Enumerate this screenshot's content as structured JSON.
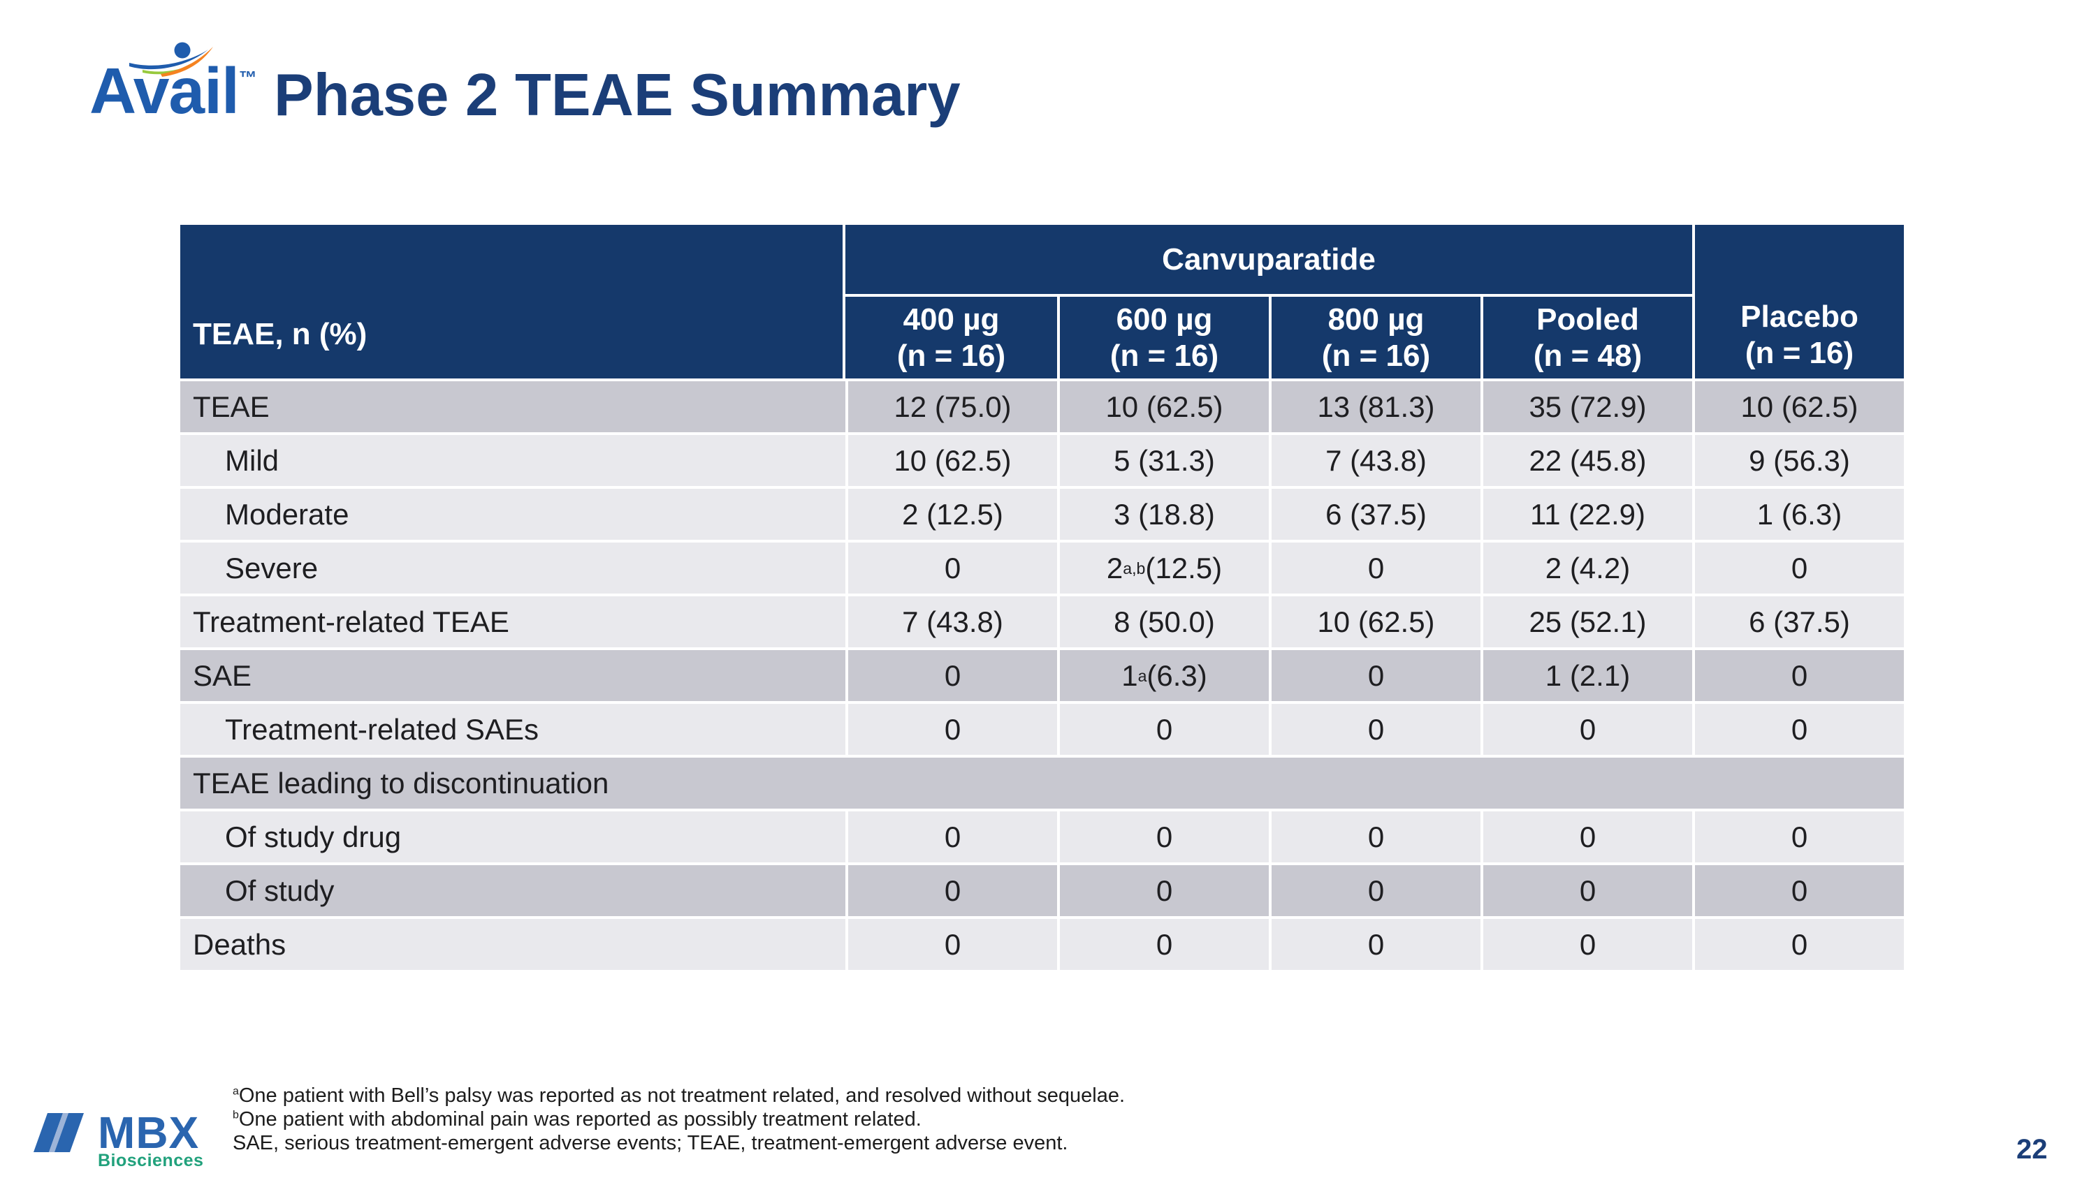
{
  "slide": {
    "brand": "Avail",
    "brand_tm": "™",
    "title": "Phase 2 TEAE Summary",
    "page_number": "22"
  },
  "table": {
    "first_col_header": "TEAE, n (%)",
    "group_header": "Canvuparatide",
    "columns": [
      {
        "label": "400 µg",
        "n": "(n = 16)"
      },
      {
        "label": "600 µg",
        "n": "(n = 16)"
      },
      {
        "label": "800 µg",
        "n": "(n = 16)"
      },
      {
        "label": "Pooled",
        "n": "(n = 48)"
      },
      {
        "label": "Placebo",
        "n": "(n = 16)"
      }
    ],
    "rows": [
      {
        "label": "TEAE",
        "indent": false,
        "shade": "dark",
        "merged": false,
        "values": [
          "12 (75.0)",
          "10 (62.5)",
          "13 (81.3)",
          "35 (72.9)",
          "10 (62.5)"
        ]
      },
      {
        "label": "Mild",
        "indent": true,
        "shade": "light",
        "merged": false,
        "values": [
          "10 (62.5)",
          "5 (31.3)",
          "7 (43.8)",
          "22 (45.8)",
          "9 (56.3)"
        ]
      },
      {
        "label": "Moderate",
        "indent": true,
        "shade": "light",
        "merged": false,
        "values": [
          "2 (12.5)",
          "3 (18.8)",
          "6 (37.5)",
          "11 (22.9)",
          "1 (6.3)"
        ]
      },
      {
        "label": "Severe",
        "indent": true,
        "shade": "light",
        "merged": false,
        "values": [
          "0",
          "2^{a,b} (12.5)",
          "0",
          "2 (4.2)",
          "0"
        ]
      },
      {
        "label": "Treatment-related TEAE",
        "indent": false,
        "shade": "light",
        "merged": false,
        "values": [
          "7 (43.8)",
          "8 (50.0)",
          "10 (62.5)",
          "25 (52.1)",
          "6 (37.5)"
        ]
      },
      {
        "label": "SAE",
        "indent": false,
        "shade": "dark",
        "merged": false,
        "values": [
          "0",
          "1^{a} (6.3)",
          "0",
          "1 (2.1)",
          "0"
        ]
      },
      {
        "label": "Treatment-related SAEs",
        "indent": true,
        "shade": "light",
        "merged": false,
        "values": [
          "0",
          "0",
          "0",
          "0",
          "0"
        ]
      },
      {
        "label": "TEAE leading to discontinuation",
        "indent": false,
        "shade": "dark",
        "merged": true,
        "values": []
      },
      {
        "label": "Of study drug",
        "indent": true,
        "shade": "light",
        "merged": false,
        "values": [
          "0",
          "0",
          "0",
          "0",
          "0"
        ]
      },
      {
        "label": "Of study",
        "indent": true,
        "shade": "dark",
        "merged": false,
        "values": [
          "0",
          "0",
          "0",
          "0",
          "0"
        ]
      },
      {
        "label": "Deaths",
        "indent": false,
        "shade": "light",
        "merged": false,
        "values": [
          "0",
          "0",
          "0",
          "0",
          "0"
        ]
      }
    ]
  },
  "footnotes": [
    "^{a}One patient with Bell’s palsy was reported as not treatment related, and resolved without sequelae.",
    "^{b}One patient with abdominal pain was reported as possibly treatment related.",
    "SAE, serious treatment-emergent adverse events; TEAE, treatment-emergent adverse event."
  ],
  "footer": {
    "mbx_word": "MBX",
    "mbx_sub": "Biosciences"
  },
  "colors": {
    "navy": "#15396b",
    "title_navy": "#1b3e78",
    "row_dark": "#c8c8d0",
    "row_light": "#e9e9ed",
    "avail_blue": "#1f5cad",
    "swoosh_green": "#97c93d",
    "swoosh_orange": "#f58220",
    "mbx_blue": "#2a65af",
    "mbx_green": "#21a17c"
  }
}
